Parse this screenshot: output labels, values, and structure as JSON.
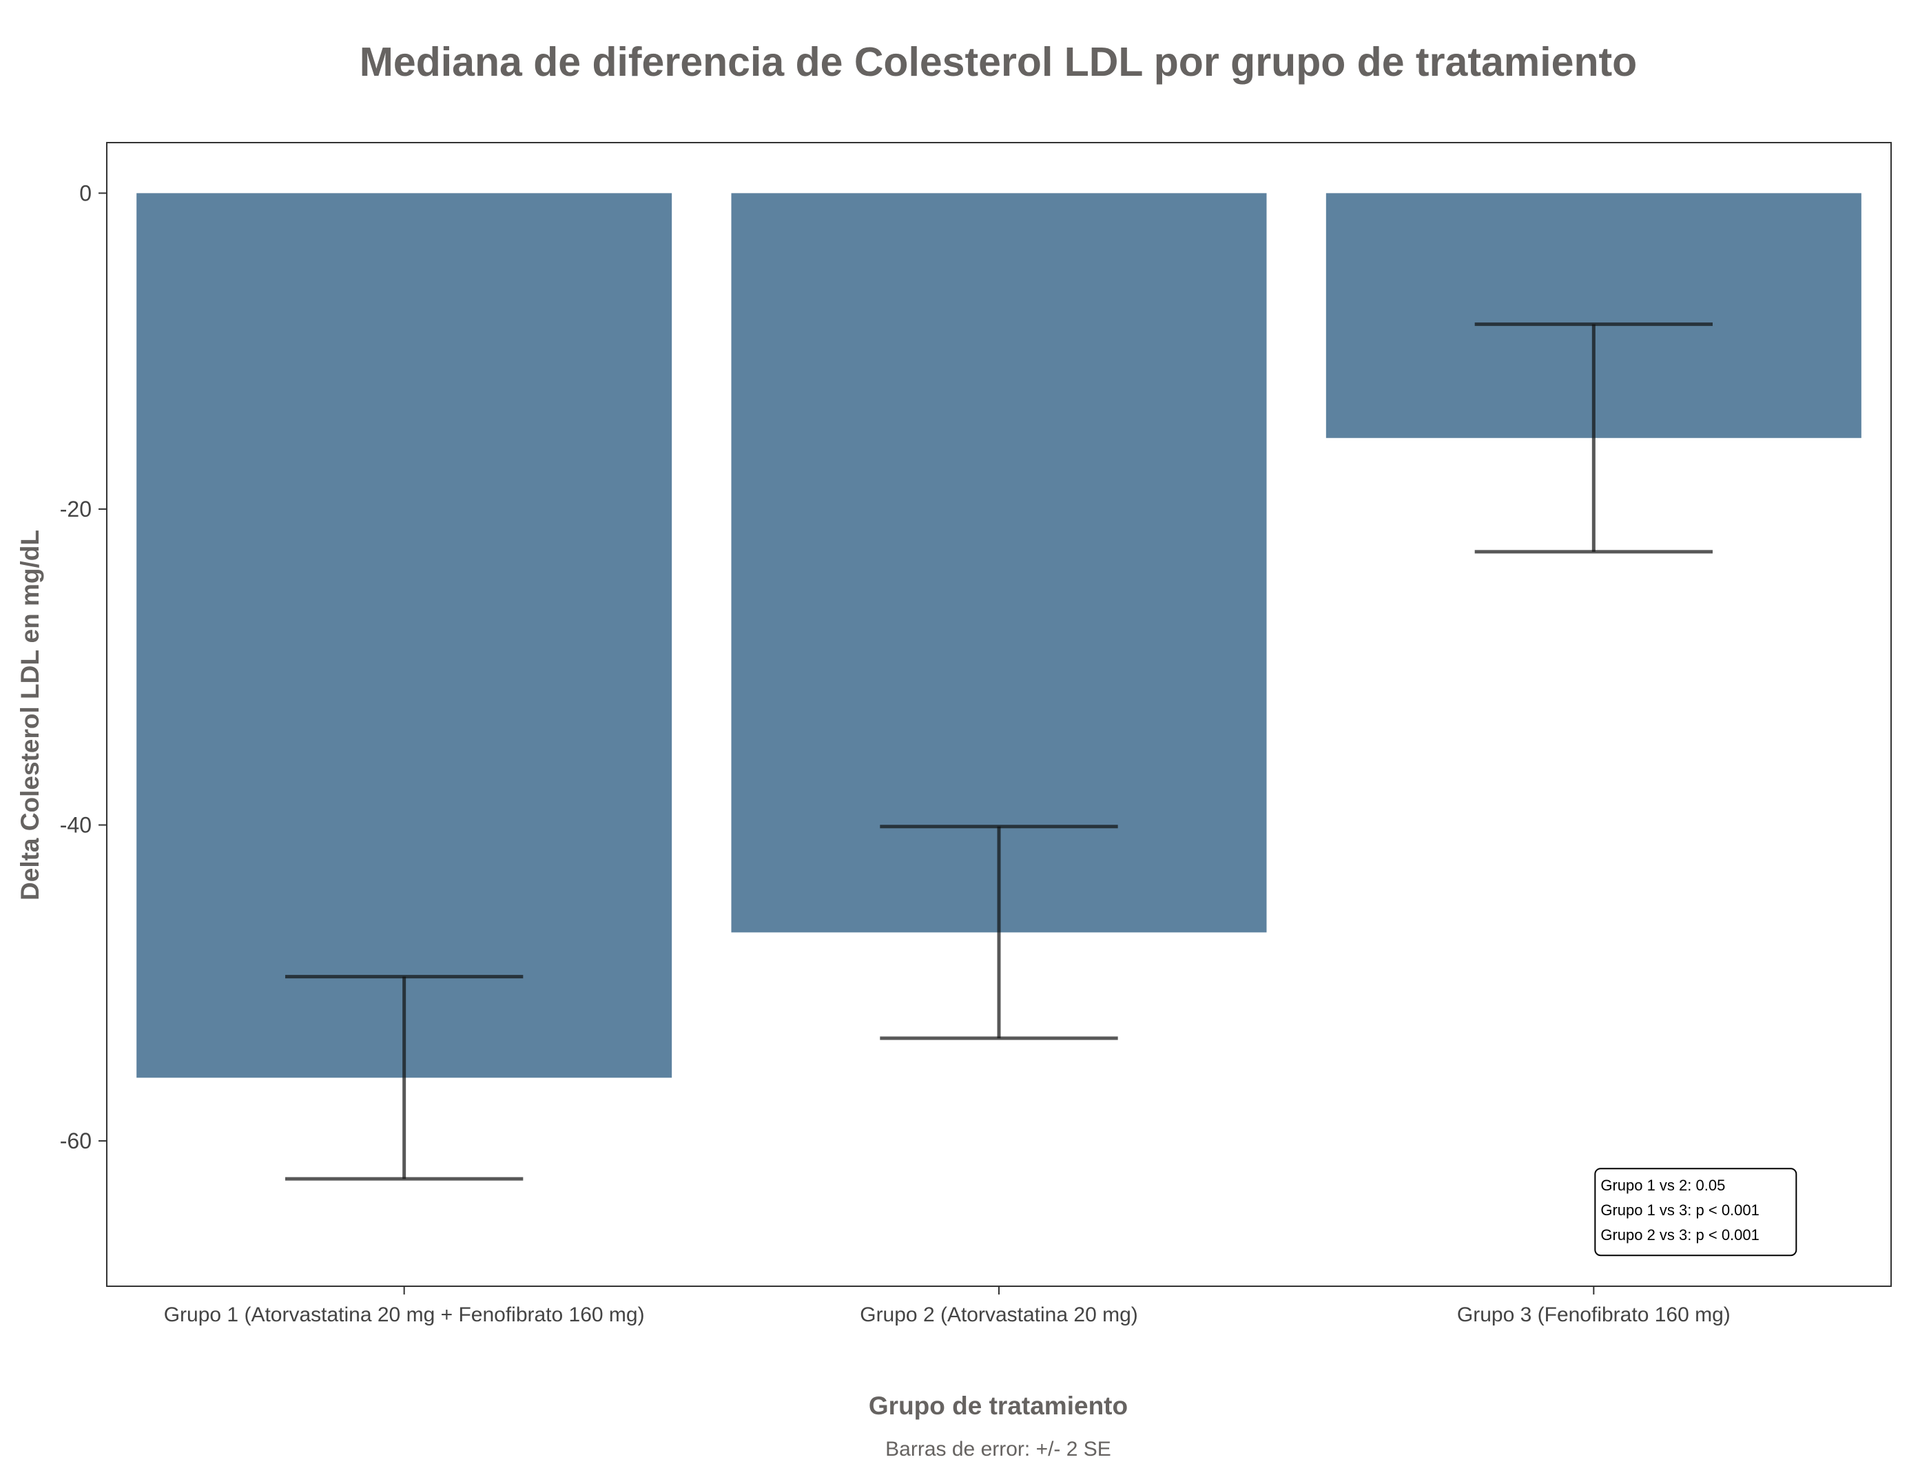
{
  "chart_data": {
    "type": "bar",
    "title": "Mediana de diferencia de Colesterol LDL por grupo de tratamiento",
    "xlabel": "Grupo de tratamiento",
    "ylabel": "Delta Colesterol LDL en mg/dL",
    "caption": "Barras de error: +/- 2 SE",
    "categories": [
      "Grupo 1 (Atorvastatina 20 mg + Fenofibrato 160 mg)",
      "Grupo 2 (Atorvastatina 20 mg)",
      "Grupo 3 (Fenofibrato 160 mg)"
    ],
    "values": [
      -56,
      -46.8,
      -15.5
    ],
    "error_bars": [
      {
        "low": -62.4,
        "high": -49.6
      },
      {
        "low": -53.5,
        "high": -40.1
      },
      {
        "low": -22.7,
        "high": -8.3
      }
    ],
    "ylim": [
      -69.2,
      3.2
    ],
    "y_ticks": [
      0,
      -20,
      -40,
      -60
    ],
    "y_tick_labels": [
      "0",
      "-20",
      "-40",
      "-60"
    ],
    "grid": false,
    "annotation": {
      "lines": [
        "Grupo 1 vs 2: 0.05",
        "Grupo 1 vs 3: p < 0.001",
        "Grupo 2 vs 3: p < 0.001"
      ],
      "anchor": {
        "category_index": 2,
        "y": -64.5
      }
    },
    "colors": {
      "bar": "#5d829f",
      "error_bar": "#111111",
      "axis": "#333333",
      "title": "#666361",
      "tick_label": "#444444"
    }
  }
}
